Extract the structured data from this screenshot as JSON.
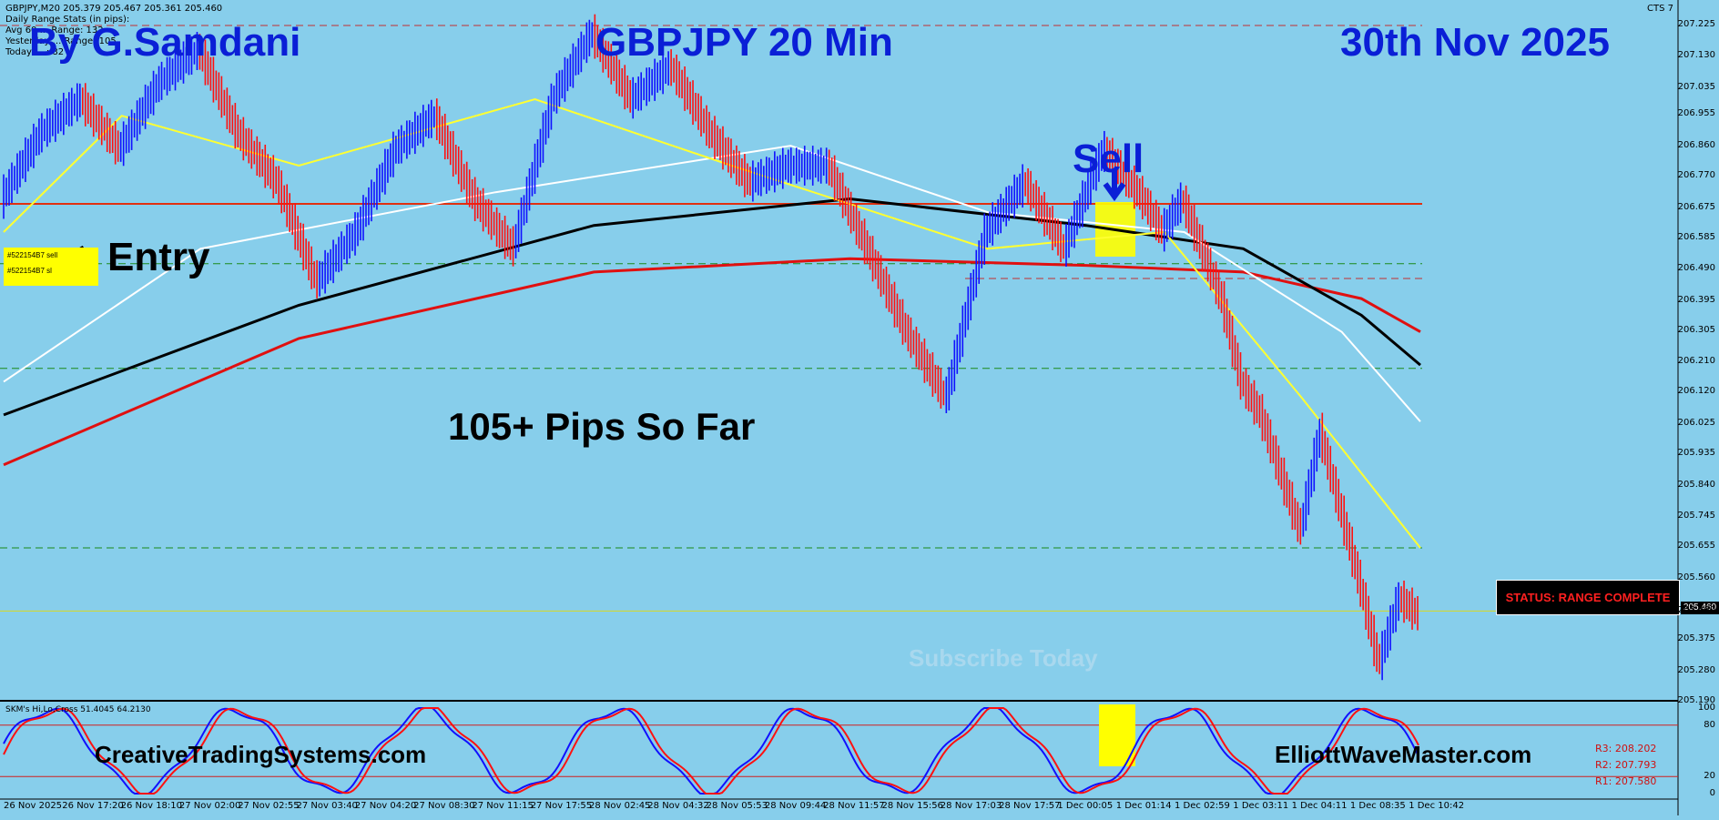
{
  "header": {
    "symbol_line": "GBPJPY,M20  205.379 205.467 205.361 205.460",
    "stats_title": "Daily Range Stats (in pips):",
    "stats_avg": "Avg 60 ... Range: 132",
    "stats_yesterday": "Yesterday ... Range: 105",
    "stats_today": "Today ... : 82",
    "cts": "CTS 7"
  },
  "overlay": {
    "author": "By G.Samdani",
    "pair_title": "GBPJPY 20 Min",
    "date": "30th Nov 2025",
    "sell_label": "Sell",
    "entry_label": "Entry",
    "pips_text": "105+ Pips So Far",
    "subscribe": "Subscribe Today",
    "site_left": "CreativeTradingSystems.com",
    "site_right": "ElliottWaveMaster.com",
    "status": "STATUS: RANGE COMPLETE",
    "order1": "#522154B7 sell",
    "order2": "#522154B7 sl"
  },
  "price_scale": [
    "207.225",
    "207.130",
    "207.035",
    "206.955",
    "206.860",
    "206.770",
    "206.675",
    "206.585",
    "206.490",
    "206.395",
    "206.305",
    "206.210",
    "206.120",
    "206.025",
    "205.935",
    "205.840",
    "205.745",
    "205.655",
    "205.560",
    "205.460",
    "205.375",
    "205.280",
    "205.190"
  ],
  "current_price": "205.460",
  "indicator": {
    "title": "SKM's Hi,Lo,Cross 51.4045 64.2130",
    "levels": [
      "100",
      "80",
      "20",
      "0"
    ],
    "r_labels": [
      "R3: 208.202",
      "R2: 207.793",
      "R1: 207.580"
    ]
  },
  "time_labels": [
    "26 Nov 2025",
    "26 Nov 17:20",
    "26 Nov 18:10",
    "27 Nov 02:00",
    "27 Nov 02:55",
    "27 Nov 03:40",
    "27 Nov 04:20",
    "27 Nov 08:30",
    "27 Nov 11:15",
    "27 Nov 17:55",
    "28 Nov 02:45",
    "28 Nov 04:32",
    "28 Nov 05:53",
    "28 Nov 09:44",
    "28 Nov 11:57",
    "28 Nov 15:56",
    "28 Nov 17:03",
    "28 Nov 17:57",
    "1 Dec 00:05",
    "1 Dec 01:14",
    "1 Dec 02:59",
    "1 Dec 03:11",
    "1 Dec 04:11",
    "1 Dec 08:35",
    "1 Dec 10:42"
  ],
  "colors": {
    "bg": "#87CEEB",
    "bull": "#1010ff",
    "bear": "#ff1010",
    "ma_red": "#e01010",
    "ma_black": "#000000",
    "ma_white": "#ffffff",
    "ma_yellow": "#ffff30",
    "title_blue": "#0a1fd6"
  },
  "chart_data": {
    "type": "candlestick",
    "title": "GBPJPY 20 Min",
    "ylim": [
      205.19,
      207.26
    ],
    "close_path_approx": [
      [
        0,
        206.7
      ],
      [
        4,
        206.9
      ],
      [
        8,
        207.0
      ],
      [
        12,
        206.85
      ],
      [
        16,
        207.05
      ],
      [
        20,
        207.15
      ],
      [
        24,
        206.9
      ],
      [
        28,
        206.75
      ],
      [
        32,
        206.45
      ],
      [
        36,
        206.6
      ],
      [
        40,
        206.85
      ],
      [
        44,
        206.95
      ],
      [
        48,
        206.7
      ],
      [
        52,
        206.55
      ],
      [
        56,
        207.0
      ],
      [
        60,
        207.2
      ],
      [
        64,
        207.0
      ],
      [
        68,
        207.1
      ],
      [
        72,
        206.9
      ],
      [
        76,
        206.75
      ],
      [
        80,
        206.8
      ],
      [
        84,
        206.8
      ],
      [
        88,
        206.55
      ],
      [
        92,
        206.3
      ],
      [
        96,
        206.1
      ],
      [
        100,
        206.6
      ],
      [
        104,
        206.75
      ],
      [
        108,
        206.55
      ],
      [
        112,
        206.85
      ],
      [
        116,
        206.7
      ],
      [
        118,
        206.6
      ],
      [
        120,
        206.7
      ],
      [
        124,
        206.4
      ],
      [
        126,
        206.15
      ],
      [
        128,
        206.05
      ],
      [
        132,
        205.7
      ],
      [
        134,
        206.0
      ],
      [
        138,
        205.55
      ],
      [
        140,
        205.3
      ],
      [
        142,
        205.5
      ],
      [
        144,
        205.45
      ]
    ],
    "moving_averages": [
      {
        "name": "red",
        "start": 205.9,
        "end": 206.3
      },
      {
        "name": "black",
        "start": 206.05,
        "end": 206.2
      },
      {
        "name": "white",
        "start": 206.15,
        "end": 206.03
      },
      {
        "name": "yellow",
        "start": 206.6,
        "end": 205.65
      }
    ],
    "horizontal_levels": [
      206.685,
      206.505,
      206.19,
      205.65,
      205.46
    ]
  }
}
